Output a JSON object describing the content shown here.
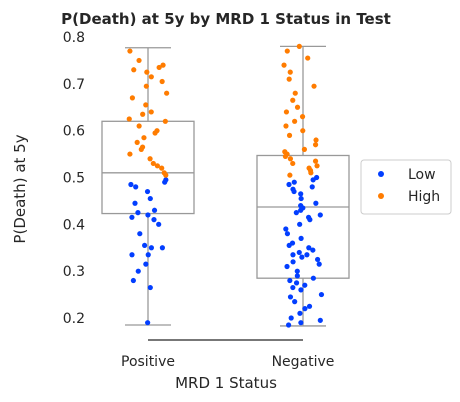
{
  "chart_data": {
    "type": "box+strip",
    "title": "P(Death) at 5y by MRD 1 Status in Test",
    "xlabel": "MRD 1 Status",
    "ylabel": "P(Death) at 5y",
    "categories": [
      "Positive",
      "Negative"
    ],
    "ylim": [
      0.15,
      0.8
    ],
    "yticks": [
      0.2,
      0.3,
      0.4,
      0.5,
      0.6,
      0.7,
      0.8
    ],
    "grid": false,
    "legend": {
      "placement": "right",
      "entries": [
        "Low",
        "High"
      ]
    },
    "colors": {
      "Low": "#023eff",
      "High": "#ff7c00",
      "box": "#999999",
      "despine": "#262626"
    },
    "boxes": [
      {
        "category": "Positive",
        "min": 0.185,
        "q1": 0.423,
        "median": 0.51,
        "q3": 0.62,
        "max": 0.777
      },
      {
        "category": "Negative",
        "min": 0.183,
        "q1": 0.285,
        "median": 0.437,
        "q3": 0.547,
        "max": 0.78
      }
    ],
    "series": [
      {
        "name": "Low",
        "points": {
          "Positive": [
            0.19,
            0.265,
            0.28,
            0.3,
            0.315,
            0.335,
            0.335,
            0.35,
            0.35,
            0.355,
            0.38,
            0.4,
            0.41,
            0.415,
            0.42,
            0.425,
            0.43,
            0.445,
            0.455,
            0.47,
            0.48,
            0.485,
            0.49,
            0.495
          ],
          "Negative": [
            0.185,
            0.19,
            0.195,
            0.2,
            0.21,
            0.22,
            0.225,
            0.235,
            0.245,
            0.25,
            0.26,
            0.265,
            0.27,
            0.275,
            0.28,
            0.285,
            0.29,
            0.3,
            0.31,
            0.315,
            0.32,
            0.325,
            0.33,
            0.335,
            0.335,
            0.34,
            0.345,
            0.35,
            0.355,
            0.36,
            0.37,
            0.38,
            0.39,
            0.4,
            0.41,
            0.415,
            0.42,
            0.425,
            0.43,
            0.435,
            0.44,
            0.445,
            0.455,
            0.465,
            0.47,
            0.475,
            0.48,
            0.485,
            0.49,
            0.495,
            0.5
          ]
        }
      },
      {
        "name": "High",
        "points": {
          "Positive": [
            0.505,
            0.51,
            0.52,
            0.525,
            0.53,
            0.54,
            0.55,
            0.56,
            0.565,
            0.575,
            0.585,
            0.595,
            0.6,
            0.61,
            0.62,
            0.625,
            0.635,
            0.64,
            0.655,
            0.67,
            0.68,
            0.695,
            0.705,
            0.715,
            0.725,
            0.73,
            0.735,
            0.74,
            0.75,
            0.77
          ],
          "Negative": [
            0.505,
            0.51,
            0.515,
            0.52,
            0.525,
            0.53,
            0.535,
            0.54,
            0.545,
            0.55,
            0.555,
            0.56,
            0.57,
            0.58,
            0.59,
            0.6,
            0.61,
            0.62,
            0.63,
            0.64,
            0.65,
            0.665,
            0.68,
            0.695,
            0.71,
            0.725,
            0.74,
            0.755,
            0.77,
            0.78
          ]
        }
      }
    ]
  }
}
